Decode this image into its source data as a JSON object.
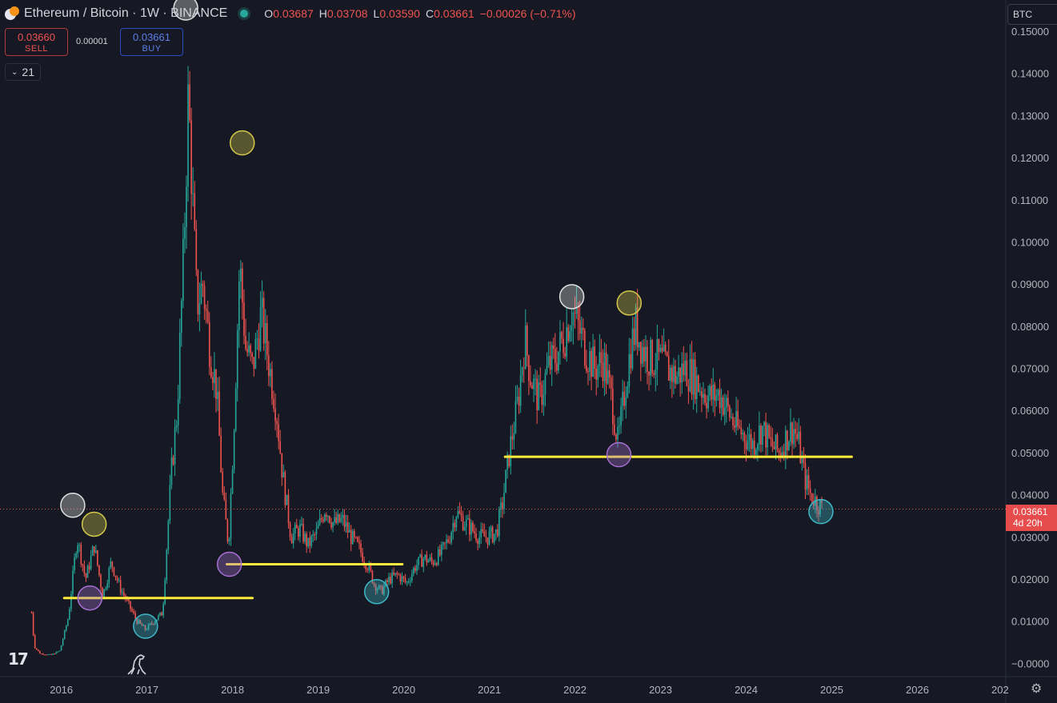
{
  "header": {
    "title": "Ethereum / Bitcoin · 1W · BINANCE",
    "ohlc": [
      {
        "key": "O",
        "value": "0.03687"
      },
      {
        "key": "H",
        "value": "0.03708"
      },
      {
        "key": "L",
        "value": "0.03590"
      },
      {
        "key": "C",
        "value": "0.03661"
      }
    ],
    "change": "−0.00026 (−0.71%)"
  },
  "trade": {
    "sell_price": "0.03660",
    "sell_label": "SELL",
    "spread": "0.00001",
    "buy_price": "0.03661",
    "buy_label": "BUY"
  },
  "indicators_count": "21",
  "currency": "BTC",
  "price_tag": {
    "price": "0.03661",
    "countdown": "4d 20h"
  },
  "colors": {
    "background": "#161923",
    "up": "#26a69a",
    "down": "#ef5350",
    "level": "#ffeb3b",
    "price_line": "#ef5350"
  },
  "icons": [
    "tradingview-logo-icon",
    "dinosaur-icon",
    "settings-gear-icon",
    "chevron-down-icon",
    "live-dot-icon"
  ],
  "chart_data": {
    "type": "candlestick",
    "interval": "1W",
    "x_ticks": [
      "2016",
      "2017",
      "2018",
      "2019",
      "2020",
      "2021",
      "2022",
      "2023",
      "2024",
      "2025",
      "2026",
      "202"
    ],
    "y_ticks": [
      "0.15000",
      "0.14000",
      "0.13000",
      "0.12000",
      "0.11000",
      "0.10000",
      "0.09000",
      "0.08000",
      "0.07000",
      "0.06000",
      "0.05000",
      "0.04000",
      "0.03000",
      "0.02000",
      "0.01000",
      "−0.0000"
    ],
    "y_range": [
      -0.0005,
      0.1555
    ],
    "x_range": [
      2015.25,
      2027.0
    ],
    "grid": false,
    "current_price": 0.03661,
    "price_path": [
      [
        2015.62,
        0.012
      ],
      [
        2015.65,
        0.004
      ],
      [
        2015.72,
        0.0023
      ],
      [
        2015.85,
        0.002
      ],
      [
        2015.95,
        0.003
      ],
      [
        2016.05,
        0.011
      ],
      [
        2016.15,
        0.03
      ],
      [
        2016.25,
        0.02
      ],
      [
        2016.35,
        0.028
      ],
      [
        2016.45,
        0.016
      ],
      [
        2016.55,
        0.024
      ],
      [
        2016.65,
        0.018
      ],
      [
        2016.75,
        0.014
      ],
      [
        2016.85,
        0.01
      ],
      [
        2016.95,
        0.008
      ],
      [
        2017.05,
        0.01
      ],
      [
        2017.15,
        0.012
      ],
      [
        2017.25,
        0.045
      ],
      [
        2017.32,
        0.06
      ],
      [
        2017.4,
        0.1
      ],
      [
        2017.45,
        0.135
      ],
      [
        2017.5,
        0.11
      ],
      [
        2017.55,
        0.085
      ],
      [
        2017.62,
        0.09
      ],
      [
        2017.7,
        0.075
      ],
      [
        2017.78,
        0.065
      ],
      [
        2017.85,
        0.04
      ],
      [
        2017.92,
        0.028
      ],
      [
        2017.98,
        0.055
      ],
      [
        2018.05,
        0.095
      ],
      [
        2018.12,
        0.075
      ],
      [
        2018.2,
        0.07
      ],
      [
        2018.3,
        0.083
      ],
      [
        2018.4,
        0.07
      ],
      [
        2018.48,
        0.06
      ],
      [
        2018.55,
        0.045
      ],
      [
        2018.65,
        0.03
      ],
      [
        2018.75,
        0.032
      ],
      [
        2018.85,
        0.028
      ],
      [
        2018.95,
        0.031
      ],
      [
        2019.05,
        0.037
      ],
      [
        2019.15,
        0.033
      ],
      [
        2019.25,
        0.034
      ],
      [
        2019.35,
        0.03
      ],
      [
        2019.45,
        0.027
      ],
      [
        2019.55,
        0.023
      ],
      [
        2019.62,
        0.019
      ],
      [
        2019.7,
        0.017
      ],
      [
        2019.8,
        0.02
      ],
      [
        2019.9,
        0.021
      ],
      [
        2020.0,
        0.019
      ],
      [
        2020.1,
        0.023
      ],
      [
        2020.2,
        0.025
      ],
      [
        2020.3,
        0.024
      ],
      [
        2020.4,
        0.026
      ],
      [
        2020.5,
        0.03
      ],
      [
        2020.58,
        0.036
      ],
      [
        2020.65,
        0.034
      ],
      [
        2020.75,
        0.032
      ],
      [
        2020.85,
        0.03
      ],
      [
        2020.95,
        0.03
      ],
      [
        2021.05,
        0.031
      ],
      [
        2021.12,
        0.038
      ],
      [
        2021.2,
        0.05
      ],
      [
        2021.3,
        0.062
      ],
      [
        2021.38,
        0.077
      ],
      [
        2021.45,
        0.068
      ],
      [
        2021.55,
        0.062
      ],
      [
        2021.65,
        0.07
      ],
      [
        2021.75,
        0.073
      ],
      [
        2021.85,
        0.078
      ],
      [
        2021.93,
        0.084
      ],
      [
        2022.0,
        0.08
      ],
      [
        2022.1,
        0.074
      ],
      [
        2022.2,
        0.07
      ],
      [
        2022.3,
        0.072
      ],
      [
        2022.4,
        0.062
      ],
      [
        2022.47,
        0.052
      ],
      [
        2022.55,
        0.065
      ],
      [
        2022.62,
        0.075
      ],
      [
        2022.68,
        0.08
      ],
      [
        2022.75,
        0.075
      ],
      [
        2022.85,
        0.072
      ],
      [
        2022.95,
        0.072
      ],
      [
        2023.05,
        0.07
      ],
      [
        2023.15,
        0.068
      ],
      [
        2023.25,
        0.07
      ],
      [
        2023.35,
        0.068
      ],
      [
        2023.45,
        0.065
      ],
      [
        2023.55,
        0.063
      ],
      [
        2023.65,
        0.064
      ],
      [
        2023.75,
        0.06
      ],
      [
        2023.85,
        0.056
      ],
      [
        2023.95,
        0.054
      ],
      [
        2024.05,
        0.052
      ],
      [
        2024.15,
        0.056
      ],
      [
        2024.25,
        0.052
      ],
      [
        2024.35,
        0.05
      ],
      [
        2024.45,
        0.054
      ],
      [
        2024.52,
        0.056
      ],
      [
        2024.58,
        0.052
      ],
      [
        2024.65,
        0.044
      ],
      [
        2024.72,
        0.04
      ],
      [
        2024.8,
        0.038
      ],
      [
        2024.86,
        0.0366
      ]
    ],
    "horizontal_levels": [
      {
        "y": 0.0155,
        "x_start": 2016.0,
        "x_end": 2018.2
      },
      {
        "y": 0.0235,
        "x_start": 2017.9,
        "x_end": 2019.95
      },
      {
        "y": 0.049,
        "x_start": 2021.15,
        "x_end": 2025.2
      }
    ],
    "annotations": [
      {
        "x": 2016.1,
        "y": 0.0375,
        "kind": "top",
        "color": "#e0e0e0"
      },
      {
        "x": 2016.35,
        "y": 0.033,
        "kind": "secondary-top",
        "color": "#d4c84a"
      },
      {
        "x": 2016.3,
        "y": 0.0155,
        "kind": "retest",
        "color": "#a76fd1"
      },
      {
        "x": 2016.95,
        "y": 0.0088,
        "kind": "bottom",
        "color": "#3fb7c9"
      },
      {
        "x": 2017.42,
        "y": 0.1555,
        "kind": "top",
        "color": "#e0e0e0"
      },
      {
        "x": 2018.08,
        "y": 0.1235,
        "kind": "secondary-top",
        "color": "#d4c84a"
      },
      {
        "x": 2017.93,
        "y": 0.0235,
        "kind": "retest",
        "color": "#a76fd1"
      },
      {
        "x": 2019.65,
        "y": 0.017,
        "kind": "bottom",
        "color": "#3fb7c9"
      },
      {
        "x": 2021.93,
        "y": 0.087,
        "kind": "top",
        "color": "#e0e0e0"
      },
      {
        "x": 2022.6,
        "y": 0.0855,
        "kind": "secondary-top",
        "color": "#d4c84a"
      },
      {
        "x": 2022.48,
        "y": 0.0495,
        "kind": "retest",
        "color": "#a76fd1"
      },
      {
        "x": 2024.84,
        "y": 0.036,
        "kind": "bottom",
        "color": "#3fb7c9"
      }
    ]
  }
}
